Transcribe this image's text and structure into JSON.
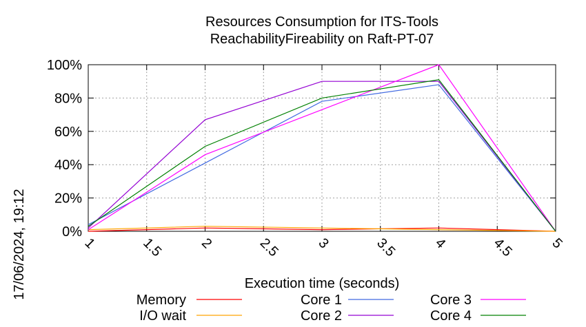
{
  "chart_data": {
    "type": "line",
    "title": "Resources Consumption for ITS-Tools",
    "subtitle": "ReachabilityFireability on Raft-PT-07",
    "xlabel": "Execution time (seconds)",
    "ylabel": "",
    "side_text": "17/06/2024, 19:12",
    "xlim": [
      1,
      5
    ],
    "ylim": [
      0,
      100
    ],
    "x_ticks": [
      "1",
      "1.5",
      "2",
      "2.5",
      "3",
      "3.5",
      "4",
      "4.5",
      "5"
    ],
    "y_ticks": [
      "0%",
      "20%",
      "40%",
      "60%",
      "80%",
      "100%"
    ],
    "grid": true,
    "legend_position": "bottom",
    "x": [
      1,
      2,
      3,
      4,
      5
    ],
    "series": [
      {
        "name": "Memory",
        "color": "#ff0000",
        "values": [
          0,
          2,
          1,
          2,
          0
        ]
      },
      {
        "name": "I/O wait",
        "color": "#ffa500",
        "values": [
          1,
          3,
          2,
          1,
          0
        ]
      },
      {
        "name": "Core 1",
        "color": "#4169e1",
        "values": [
          4,
          41,
          78,
          88,
          0
        ]
      },
      {
        "name": "Core 2",
        "color": "#9400d3",
        "values": [
          2,
          67,
          90,
          90,
          0
        ]
      },
      {
        "name": "Core 3",
        "color": "#ff00ff",
        "values": [
          1,
          46,
          73,
          100,
          0
        ]
      },
      {
        "name": "Core 4",
        "color": "#008000",
        "values": [
          3,
          51,
          80,
          91,
          0
        ]
      }
    ]
  }
}
